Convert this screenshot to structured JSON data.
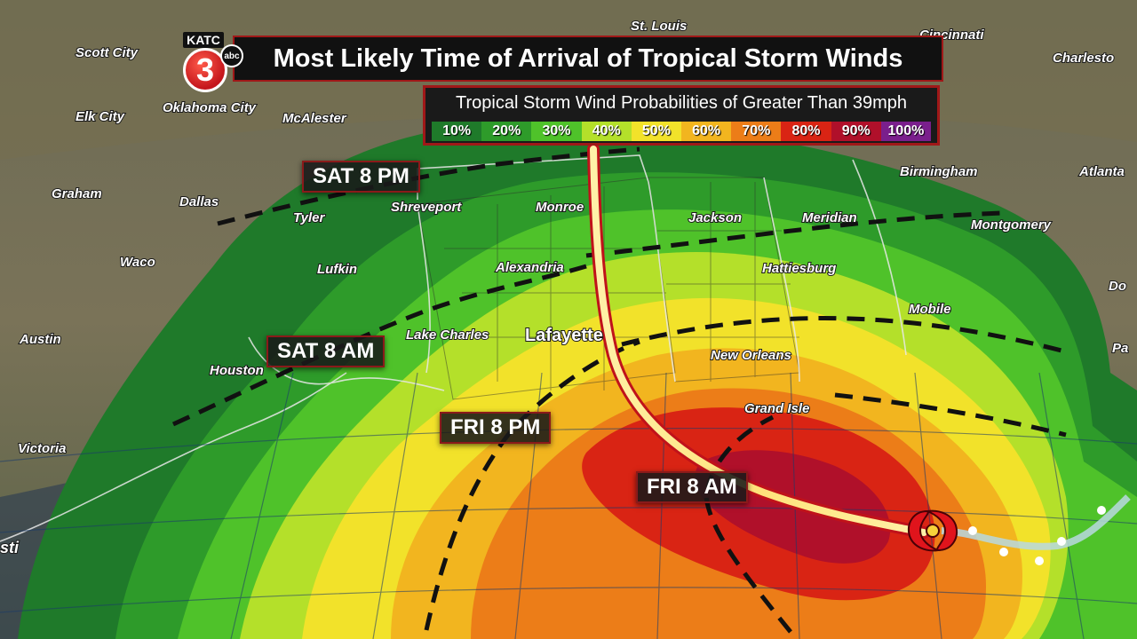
{
  "station": {
    "name": "KATC",
    "channel": "3",
    "network": "abc"
  },
  "title": "Most Likely Time of Arrival of Tropical Storm Winds",
  "legend": {
    "title": "Tropical Storm Wind Probabilities of Greater Than 39mph",
    "levels": [
      {
        "label": "10%",
        "color": "#1f7a2a"
      },
      {
        "label": "20%",
        "color": "#2e9b2a"
      },
      {
        "label": "30%",
        "color": "#4fc22a"
      },
      {
        "label": "40%",
        "color": "#b4e02a"
      },
      {
        "label": "50%",
        "color": "#f2e22a"
      },
      {
        "label": "60%",
        "color": "#f2b51f"
      },
      {
        "label": "70%",
        "color": "#ec7d18"
      },
      {
        "label": "80%",
        "color": "#d92414"
      },
      {
        "label": "90%",
        "color": "#b0102a"
      },
      {
        "label": "100%",
        "color": "#7a1f8c"
      }
    ]
  },
  "arrival_times": [
    {
      "id": "sat-8pm",
      "label": "SAT 8 PM"
    },
    {
      "id": "sat-8am",
      "label": "SAT 8 AM"
    },
    {
      "id": "fri-8pm",
      "label": "FRI 8 PM"
    },
    {
      "id": "fri-8am",
      "label": "FRI 8 AM"
    }
  ],
  "cities": [
    {
      "id": "st-louis",
      "name": "St. Louis"
    },
    {
      "id": "cincinnati",
      "name": "Cincinnati"
    },
    {
      "id": "scott-city",
      "name": "Scott City"
    },
    {
      "id": "charleston",
      "name": "Charlesto"
    },
    {
      "id": "elk-city",
      "name": "Elk City"
    },
    {
      "id": "oklahoma-city",
      "name": "Oklahoma City"
    },
    {
      "id": "mcalester",
      "name": "McAlester"
    },
    {
      "id": "birmingham",
      "name": "Birmingham"
    },
    {
      "id": "atlanta",
      "name": "Atlanta"
    },
    {
      "id": "graham",
      "name": "Graham"
    },
    {
      "id": "dallas",
      "name": "Dallas"
    },
    {
      "id": "tyler",
      "name": "Tyler"
    },
    {
      "id": "shreveport",
      "name": "Shreveport"
    },
    {
      "id": "monroe",
      "name": "Monroe"
    },
    {
      "id": "jackson",
      "name": "Jackson"
    },
    {
      "id": "meridian",
      "name": "Meridian"
    },
    {
      "id": "montgomery",
      "name": "Montgomery"
    },
    {
      "id": "waco",
      "name": "Waco"
    },
    {
      "id": "lufkin",
      "name": "Lufkin"
    },
    {
      "id": "alexandria",
      "name": "Alexandria"
    },
    {
      "id": "hattiesburg",
      "name": "Hattiesburg"
    },
    {
      "id": "dothan",
      "name": "Do"
    },
    {
      "id": "austin",
      "name": "Austin"
    },
    {
      "id": "lake-charles",
      "name": "Lake Charles"
    },
    {
      "id": "lafayette",
      "name": "Lafayette"
    },
    {
      "id": "mobile",
      "name": "Mobile"
    },
    {
      "id": "panama-city",
      "name": "Pa"
    },
    {
      "id": "houston",
      "name": "Houston"
    },
    {
      "id": "new-orleans",
      "name": "New Orleans"
    },
    {
      "id": "grand-isle",
      "name": "Grand Isle"
    },
    {
      "id": "victoria",
      "name": "Victoria"
    },
    {
      "id": "corpus-christi",
      "name": "sti"
    }
  ]
}
